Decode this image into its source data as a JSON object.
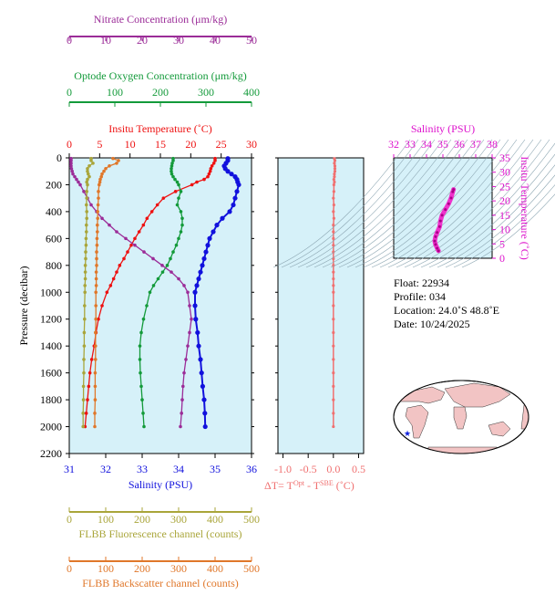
{
  "colors": {
    "panel_bg": "#d6f1f9",
    "temperature": "#ee1111",
    "salinity": "#1111dd",
    "oxygen": "#139a3a",
    "nitrate": "#9b2c98",
    "fluorescence": "#a9a53a",
    "backscatter": "#e0772a",
    "delta_t": "#f07070",
    "ts_title": "#dd11cc",
    "ts_line": "#ee33cc",
    "land": "#f2c4c4",
    "ocean": "#ffffff",
    "float_marker": "#1122dd"
  },
  "info": {
    "float": "Float:  22934",
    "profile": "Profile:  034",
    "location": "Location:  24.0˚S  48.8˚E",
    "date": "Date:  10/24/2025"
  },
  "chart_data": [
    {
      "type": "line",
      "name": "main-profile-panel",
      "ylabel": "Pressure (decibar)",
      "ylim": [
        2200,
        0
      ],
      "yticks": [
        0,
        200,
        400,
        600,
        800,
        1000,
        1200,
        1400,
        1600,
        1800,
        2000,
        2200
      ],
      "pressure": [
        5,
        20,
        40,
        60,
        80,
        100,
        120,
        140,
        160,
        180,
        200,
        250,
        300,
        350,
        400,
        450,
        500,
        550,
        600,
        650,
        700,
        750,
        800,
        850,
        900,
        950,
        1000,
        1100,
        1200,
        1300,
        1400,
        1500,
        1600,
        1700,
        1800,
        1900,
        2000
      ],
      "axes": [
        {
          "key": "temperature",
          "label": "Insitu Temperature (˚C)",
          "range": [
            0,
            30
          ],
          "ticks": [
            0,
            5,
            10,
            15,
            20,
            25,
            30
          ],
          "tick_labels": [
            "0",
            "5",
            "10",
            "15",
            "20",
            "25",
            "30"
          ],
          "position": "top-1"
        },
        {
          "key": "oxygen",
          "label": "Optode Oxygen Concentration (μm/kg)",
          "range": [
            0,
            400
          ],
          "ticks": [
            0,
            100,
            200,
            300,
            400
          ],
          "tick_labels": [
            "0",
            "100",
            "200",
            "300",
            "400"
          ],
          "position": "top-2"
        },
        {
          "key": "nitrate",
          "label": "Nitrate Concentration (μm/kg)",
          "range": [
            0,
            50
          ],
          "ticks": [
            0,
            10,
            20,
            30,
            40,
            50
          ],
          "tick_labels": [
            "0",
            "10",
            "20",
            "30",
            "40",
            "50"
          ],
          "position": "top-3"
        },
        {
          "key": "salinity",
          "label": "Salinity (PSU)",
          "range": [
            31,
            36
          ],
          "ticks": [
            31,
            32,
            33,
            34,
            35,
            36
          ],
          "tick_labels": [
            "31",
            "32",
            "33",
            "34",
            "35",
            "36"
          ],
          "position": "bottom-1"
        },
        {
          "key": "fluorescence",
          "label": "FLBB Fluorescence channel (counts)",
          "range": [
            0,
            500
          ],
          "ticks": [
            0,
            100,
            200,
            300,
            400,
            500
          ],
          "tick_labels": [
            "0",
            "100",
            "200",
            "300",
            "400",
            "500"
          ],
          "position": "bottom-2"
        },
        {
          "key": "backscatter",
          "label": "FLBB Backscatter channel (counts)",
          "range": [
            0,
            500
          ],
          "ticks": [
            0,
            100,
            200,
            300,
            400,
            500
          ],
          "tick_labels": [
            "0",
            "100",
            "200",
            "300",
            "400",
            "500"
          ],
          "position": "bottom-3"
        }
      ],
      "series": [
        {
          "key": "temperature",
          "values": [
            24.0,
            24.0,
            23.8,
            23.5,
            23.3,
            23.2,
            23.0,
            22.8,
            22.2,
            21.0,
            20.2,
            17.5,
            15.5,
            14.5,
            13.6,
            12.8,
            12.2,
            11.5,
            10.8,
            10.2,
            9.6,
            9.0,
            8.3,
            7.8,
            7.3,
            6.8,
            6.2,
            5.4,
            4.8,
            4.4,
            4.1,
            3.7,
            3.4,
            3.2,
            3.0,
            2.8,
            2.6
          ]
        },
        {
          "key": "salinity",
          "values": [
            35.35,
            35.35,
            35.3,
            35.25,
            35.28,
            35.35,
            35.45,
            35.55,
            35.6,
            35.62,
            35.65,
            35.6,
            35.55,
            35.5,
            35.4,
            35.2,
            35.05,
            34.95,
            34.85,
            34.8,
            34.75,
            34.7,
            34.65,
            34.6,
            34.55,
            34.5,
            34.45,
            34.45,
            34.47,
            34.52,
            34.55,
            34.6,
            34.63,
            34.66,
            34.7,
            34.72,
            34.73
          ]
        },
        {
          "key": "oxygen",
          "values": [
            228,
            228,
            226,
            225,
            224,
            224,
            225,
            228,
            232,
            237,
            240,
            245,
            240,
            237,
            245,
            248,
            248,
            245,
            240,
            235,
            228,
            222,
            215,
            205,
            195,
            185,
            177,
            170,
            163,
            158,
            155,
            155,
            156,
            158,
            160,
            162,
            164
          ]
        },
        {
          "key": "nitrate",
          "values": [
            0.5,
            0.5,
            0.5,
            0.5,
            0.6,
            0.8,
            1.0,
            1.5,
            2.0,
            2.5,
            3.0,
            4.0,
            5.0,
            6.0,
            7.5,
            9.0,
            11.0,
            13.0,
            15.5,
            18.0,
            20.5,
            23.0,
            25.5,
            28.0,
            30.0,
            31.5,
            32.5,
            33.0,
            33.5,
            33.0,
            32.5,
            32.0,
            31.5,
            31.2,
            31.0,
            30.8,
            30.5
          ]
        },
        {
          "key": "fluorescence",
          "values": [
            60,
            60,
            65,
            55,
            50,
            50,
            52,
            55,
            50,
            48,
            50,
            48,
            48,
            47,
            48,
            48,
            47,
            47,
            46,
            46,
            45,
            45,
            44,
            44,
            44,
            43,
            43,
            42,
            42,
            41,
            41,
            40,
            40,
            39,
            39,
            38,
            38
          ]
        },
        {
          "key": "backscatter",
          "values": [
            120,
            135,
            130,
            110,
            100,
            95,
            90,
            88,
            85,
            84,
            82,
            80,
            80,
            79,
            78,
            78,
            77,
            77,
            76,
            76,
            75,
            75,
            75,
            74,
            74,
            74,
            73,
            73,
            73,
            72,
            72,
            72,
            71,
            71,
            71,
            70,
            70
          ]
        }
      ],
      "grid": false
    },
    {
      "type": "line",
      "name": "delta-t-panel",
      "xlabel": "ΔT= T",
      "xlabel_sup1": "Opt",
      "xlabel_mid": " - T",
      "xlabel_sup2": "SBE",
      "xlabel_unit": " (˚C)",
      "xlim": [
        -1.1,
        0.6
      ],
      "xticks": [
        -1.0,
        -0.5,
        0.0,
        0.5
      ],
      "tick_labels": [
        "-1.0",
        "-0.5",
        "0.0",
        "0.5"
      ],
      "pressure": [
        5,
        20,
        40,
        60,
        80,
        100,
        120,
        140,
        160,
        180,
        200,
        250,
        300,
        350,
        400,
        450,
        500,
        550,
        600,
        650,
        700,
        750,
        800,
        850,
        900,
        950,
        1000,
        1100,
        1200,
        1300,
        1400,
        1500,
        1600,
        1700,
        1800,
        1900,
        2000
      ],
      "values": [
        0.02,
        0.03,
        0.02,
        0.03,
        0.03,
        0.03,
        0.02,
        0.02,
        0.01,
        0.02,
        0.01,
        0.01,
        0.0,
        0.01,
        0.0,
        0.01,
        0.0,
        0.0,
        0.0,
        0.0,
        0.0,
        0.0,
        0.0,
        0.0,
        0.0,
        0.0,
        0.0,
        0.0,
        0.0,
        0.0,
        0.0,
        0.0,
        0.0,
        0.0,
        0.0,
        0.0,
        0.0
      ],
      "grid": false
    },
    {
      "type": "line",
      "name": "ts-diagram",
      "title": "Salinity (PSU)",
      "ylabel": "Insitu Temperature (˚C)",
      "xlim": [
        32,
        38
      ],
      "xticks": [
        32,
        33,
        34,
        35,
        36,
        37,
        38
      ],
      "tick_labels_x": [
        "32",
        "33",
        "34",
        "35",
        "36",
        "37",
        "38"
      ],
      "ylim": [
        0,
        35
      ],
      "yticks": [
        0,
        5,
        10,
        15,
        20,
        25,
        30,
        35
      ],
      "tick_labels_y": [
        "0",
        "5",
        "10",
        "15",
        "20",
        "25",
        "30",
        "35"
      ],
      "salinity": [
        35.65,
        35.6,
        35.5,
        35.35,
        35.15,
        34.95,
        34.85,
        34.8,
        34.65,
        34.55,
        34.5,
        34.55,
        34.65,
        34.73
      ],
      "temperature": [
        24.0,
        23.2,
        21.0,
        19.0,
        17.0,
        15.0,
        13.0,
        11.0,
        9.0,
        7.5,
        6.0,
        4.8,
        3.5,
        2.6
      ]
    }
  ]
}
